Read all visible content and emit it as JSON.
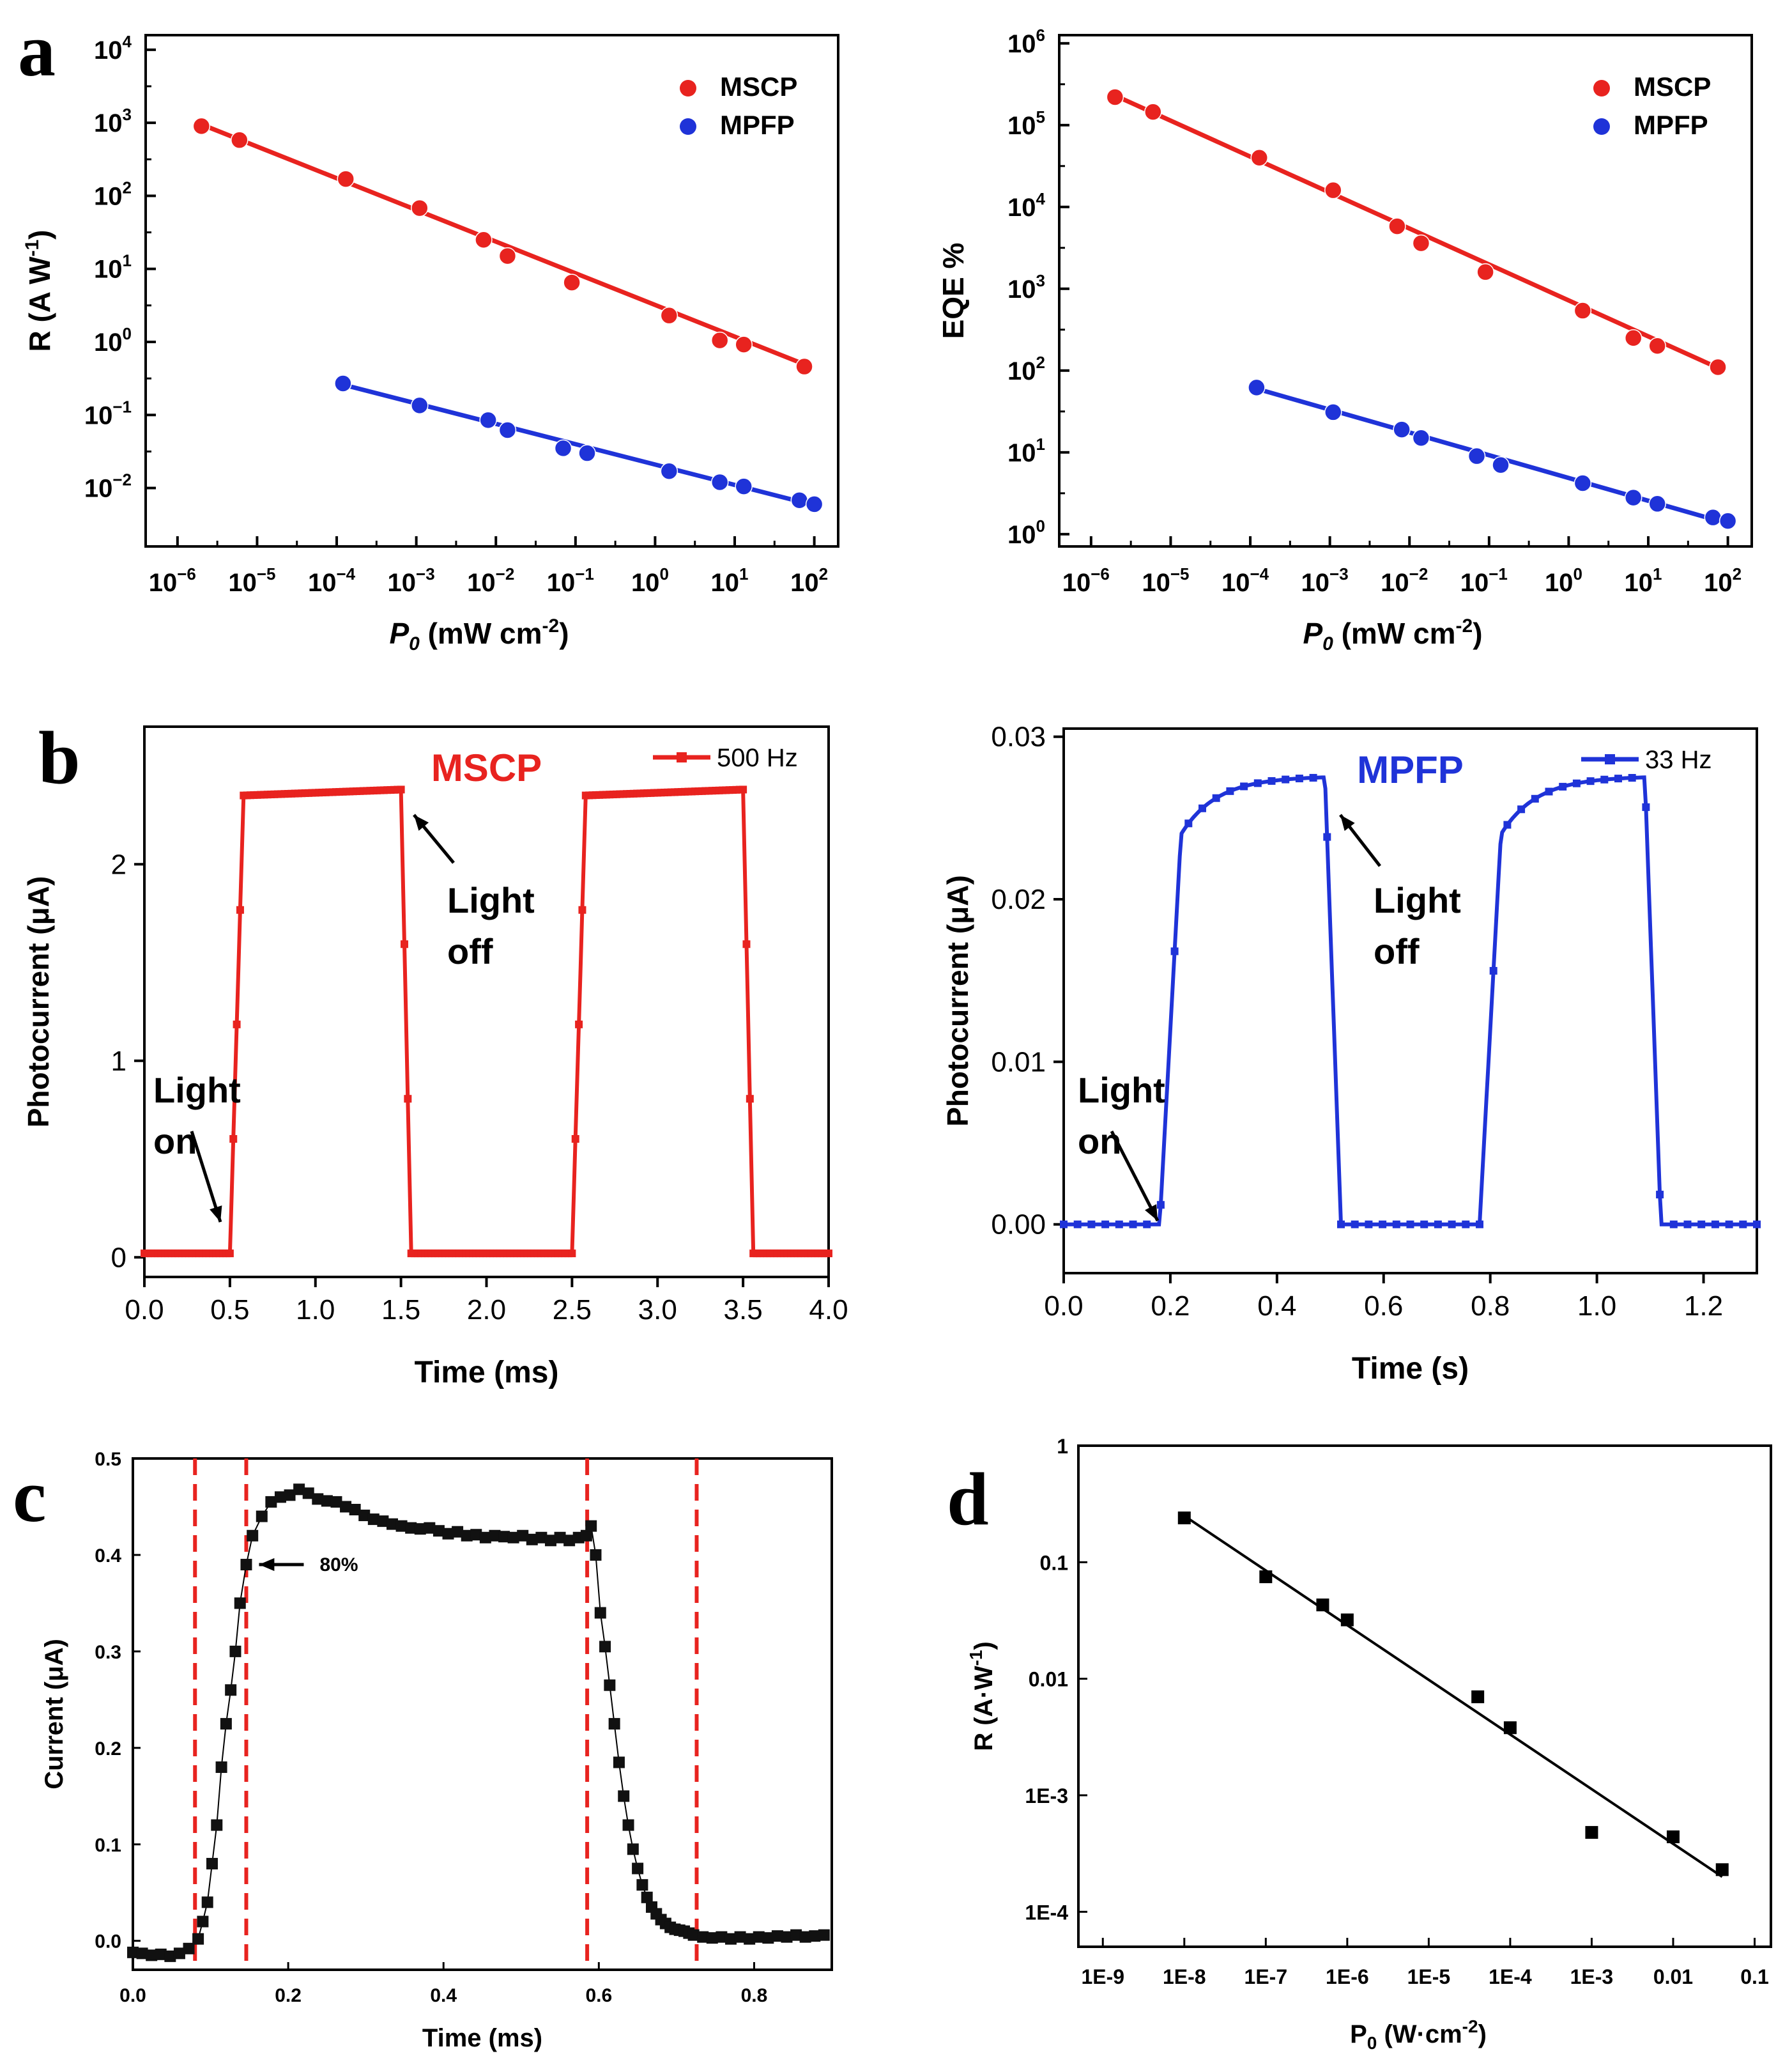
{
  "panel_letters": [
    "a",
    "b",
    "c",
    "d"
  ],
  "chart_data": [
    {
      "id": "a1",
      "type": "scatter",
      "xscale": "log",
      "yscale": "log",
      "xlabel_italic": "P",
      "xlabel_sub": "0",
      "xlabel_rest": " (mW cm",
      "xlabel_sup": "-2",
      "xlabel_close": ")",
      "ylabel": "R (A W",
      "ylabel_sup": "-1",
      "ylabel_close": ")",
      "xlim_exp": [
        -6.4,
        2.3
      ],
      "ylim_exp": [
        -2.8,
        4.2
      ],
      "x_tick_exps": [
        -6,
        -5,
        -4,
        -3,
        -2,
        -1,
        0,
        1,
        2
      ],
      "y_tick_exps": [
        -2,
        -1,
        0,
        1,
        2,
        3,
        4
      ],
      "legend_position": "top-right",
      "series": [
        {
          "name": "MSCP",
          "color": "#e8231f",
          "x": [
            2e-06,
            6e-06,
            0.00013,
            0.0011,
            0.007,
            0.014,
            0.09,
            1.5,
            6.5,
            13,
            75
          ],
          "y": [
            900,
            580,
            170,
            68,
            25,
            15,
            6.5,
            2.3,
            1.05,
            0.92,
            0.46
          ],
          "fit": [
            [
              2e-06,
              950
            ],
            [
              80,
              0.48
            ]
          ]
        },
        {
          "name": "MPFP",
          "color": "#1f33d8",
          "x": [
            0.00012,
            0.0011,
            0.008,
            0.014,
            0.07,
            0.14,
            1.5,
            6.5,
            13,
            65,
            100
          ],
          "y": [
            0.27,
            0.135,
            0.085,
            0.062,
            0.035,
            0.03,
            0.017,
            0.012,
            0.0105,
            0.0068,
            0.006
          ],
          "fit": [
            [
              0.00012,
              0.26
            ],
            [
              100,
              0.0058
            ]
          ]
        }
      ]
    },
    {
      "id": "a2",
      "type": "scatter",
      "xscale": "log",
      "yscale": "log",
      "xlabel_italic": "P",
      "xlabel_sub": "0",
      "xlabel_rest": " (mW cm",
      "xlabel_sup": "-2",
      "xlabel_close": ")",
      "ylabel": "EQE %",
      "xlim_exp": [
        -6.4,
        2.3
      ],
      "ylim_exp": [
        -0.15,
        6.1
      ],
      "x_tick_exps": [
        -6,
        -5,
        -4,
        -3,
        -2,
        -1,
        0,
        1,
        2
      ],
      "y_tick_exps": [
        0,
        1,
        2,
        3,
        4,
        5,
        6
      ],
      "legend_position": "top-right",
      "series": [
        {
          "name": "MSCP",
          "color": "#e8231f",
          "x": [
            2e-06,
            6e-06,
            0.00013,
            0.0011,
            0.007,
            0.014,
            0.09,
            1.5,
            6.5,
            13,
            75
          ],
          "y": [
            220000,
            145000,
            40000,
            16000,
            5800,
            3600,
            1600,
            540,
            250,
            200,
            110
          ],
          "fit": [
            [
              2e-06,
              230000
            ],
            [
              80,
              105
            ]
          ]
        },
        {
          "name": "MPFP",
          "color": "#1f33d8",
          "x": [
            0.00012,
            0.0011,
            0.008,
            0.014,
            0.07,
            0.14,
            1.5,
            6.5,
            13,
            65,
            100
          ],
          "y": [
            62,
            31,
            19,
            15,
            9,
            7,
            4.2,
            2.8,
            2.35,
            1.6,
            1.45
          ],
          "fit": [
            [
              0.00012,
              60
            ],
            [
              100,
              1.35
            ]
          ]
        }
      ]
    },
    {
      "id": "b1",
      "type": "line",
      "title": "MSCP",
      "legend": "500 Hz",
      "color": "#e8231f",
      "xlabel": "Time (ms)",
      "ylabel": "Photocurrent (μA)",
      "xlim": [
        0,
        4
      ],
      "ylim": [
        -0.1,
        2.7
      ],
      "x_ticks": [
        "0.0",
        "0.5",
        "1.0",
        "1.5",
        "2.0",
        "2.5",
        "3.0",
        "3.5",
        "4.0"
      ],
      "y_ticks": [
        "0",
        "1",
        "2"
      ],
      "waveform": {
        "low": 0.02,
        "high": 2.35,
        "rise_start": [
          0.5,
          2.5
        ],
        "rise_end": [
          0.58,
          2.58
        ],
        "fall_start": [
          1.5,
          3.5
        ],
        "fall_end": [
          1.56,
          3.56
        ],
        "top_end": 2.38
      },
      "annotations": [
        {
          "text": [
            "Light",
            "on"
          ]
        },
        {
          "text": [
            "Light",
            "off"
          ]
        }
      ]
    },
    {
      "id": "b2",
      "type": "line",
      "title": "MPFP",
      "legend": "33 Hz",
      "color": "#1f33d8",
      "xlabel": "Time (s)",
      "ylabel": "Photocurrent (μA)",
      "xlim": [
        0,
        1.3
      ],
      "ylim": [
        -0.003,
        0.0305
      ],
      "x_ticks": [
        "0.0",
        "0.2",
        "0.4",
        "0.6",
        "0.8",
        "1.0",
        "1.2"
      ],
      "y_ticks": [
        "0.00",
        "0.01",
        "0.02",
        "0.03"
      ],
      "waveform": {
        "low": 0.0,
        "high_start": 0.024,
        "high_end": 0.0275,
        "rise_start": [
          0.18,
          0.78
        ],
        "rise_end": [
          0.22,
          0.82
        ],
        "fall_start": [
          0.49,
          1.09
        ],
        "fall_end": [
          0.52,
          1.12
        ]
      },
      "annotations": [
        {
          "text": [
            "Light",
            "on"
          ]
        },
        {
          "text": [
            "Light",
            "off"
          ]
        }
      ]
    },
    {
      "id": "c",
      "type": "scatter",
      "xlabel": "Time (ms)",
      "ylabel": "Current (μA)",
      "xlim": [
        0,
        0.9
      ],
      "ylim": [
        -0.03,
        0.5
      ],
      "x_ticks": [
        "0.0",
        "0.2",
        "0.4",
        "0.6",
        "0.8"
      ],
      "y_ticks": [
        "0.0",
        "0.1",
        "0.2",
        "0.3",
        "0.4",
        "0.5"
      ],
      "annotation": "80%",
      "vlines": [
        0.08,
        0.146,
        0.585,
        0.726
      ],
      "x": [
        0.0,
        0.012,
        0.024,
        0.036,
        0.048,
        0.06,
        0.072,
        0.084,
        0.09,
        0.096,
        0.102,
        0.108,
        0.114,
        0.12,
        0.126,
        0.132,
        0.138,
        0.146,
        0.154,
        0.166,
        0.178,
        0.19,
        0.202,
        0.214,
        0.226,
        0.238,
        0.25,
        0.262,
        0.274,
        0.286,
        0.298,
        0.31,
        0.322,
        0.334,
        0.346,
        0.358,
        0.37,
        0.382,
        0.394,
        0.406,
        0.418,
        0.43,
        0.442,
        0.454,
        0.466,
        0.478,
        0.49,
        0.502,
        0.514,
        0.526,
        0.538,
        0.55,
        0.562,
        0.574,
        0.584,
        0.59,
        0.596,
        0.602,
        0.608,
        0.614,
        0.62,
        0.626,
        0.632,
        0.638,
        0.644,
        0.65,
        0.656,
        0.662,
        0.668,
        0.674,
        0.68,
        0.686,
        0.692,
        0.698,
        0.704,
        0.71,
        0.716,
        0.722,
        0.734,
        0.746,
        0.758,
        0.77,
        0.782,
        0.794,
        0.806,
        0.818,
        0.83,
        0.842,
        0.854,
        0.866,
        0.878,
        0.89
      ],
      "y": [
        -0.012,
        -0.013,
        -0.015,
        -0.014,
        -0.016,
        -0.013,
        -0.008,
        0.002,
        0.02,
        0.04,
        0.08,
        0.12,
        0.18,
        0.225,
        0.26,
        0.3,
        0.35,
        0.39,
        0.42,
        0.44,
        0.455,
        0.46,
        0.462,
        0.468,
        0.464,
        0.458,
        0.456,
        0.455,
        0.45,
        0.447,
        0.441,
        0.437,
        0.435,
        0.432,
        0.43,
        0.428,
        0.427,
        0.428,
        0.425,
        0.422,
        0.424,
        0.42,
        0.421,
        0.418,
        0.42,
        0.419,
        0.418,
        0.42,
        0.416,
        0.418,
        0.415,
        0.418,
        0.415,
        0.418,
        0.42,
        0.43,
        0.4,
        0.34,
        0.305,
        0.265,
        0.225,
        0.185,
        0.15,
        0.12,
        0.095,
        0.075,
        0.058,
        0.045,
        0.035,
        0.028,
        0.022,
        0.018,
        0.014,
        0.012,
        0.011,
        0.01,
        0.008,
        0.006,
        0.004,
        0.003,
        0.004,
        0.002,
        0.004,
        0.002,
        0.004,
        0.003,
        0.005,
        0.004,
        0.006,
        0.004,
        0.005,
        0.006
      ]
    },
    {
      "id": "d",
      "type": "scatter",
      "xscale": "log",
      "yscale": "log",
      "xlabel": "P",
      "xlabel_sub": "0",
      "xlabel_rest": " (W·cm",
      "xlabel_sup": "-2",
      "xlabel_close": ")",
      "ylabel": "R (A·W",
      "ylabel_sup": "-1",
      "ylabel_close": ")",
      "xlim_exp": [
        -9.3,
        -0.8
      ],
      "ylim_exp": [
        -4.3,
        0
      ],
      "x_tick_labels": [
        "1E-9",
        "1E-8",
        "1E-7",
        "1E-6",
        "1E-5",
        "1E-4",
        "1E-3",
        "0.01",
        "0.1"
      ],
      "x_tick_exps": [
        -9,
        -8,
        -7,
        -6,
        -5,
        -4,
        -3,
        -2,
        -1
      ],
      "y_tick_labels": [
        "1E-4",
        "1E-3",
        "0.01",
        "0.1",
        "1"
      ],
      "y_tick_exps": [
        -4,
        -3,
        -2,
        -1,
        0
      ],
      "x": [
        1e-08,
        1e-07,
        5e-07,
        1e-06,
        4e-05,
        0.0001,
        0.001,
        0.01,
        0.04
      ],
      "y": [
        0.24,
        0.075,
        0.043,
        0.032,
        0.007,
        0.0038,
        0.00048,
        0.00044,
        0.00023
      ],
      "fit": [
        [
          1e-08,
          0.25
        ],
        [
          0.04,
          0.0002
        ]
      ]
    }
  ]
}
